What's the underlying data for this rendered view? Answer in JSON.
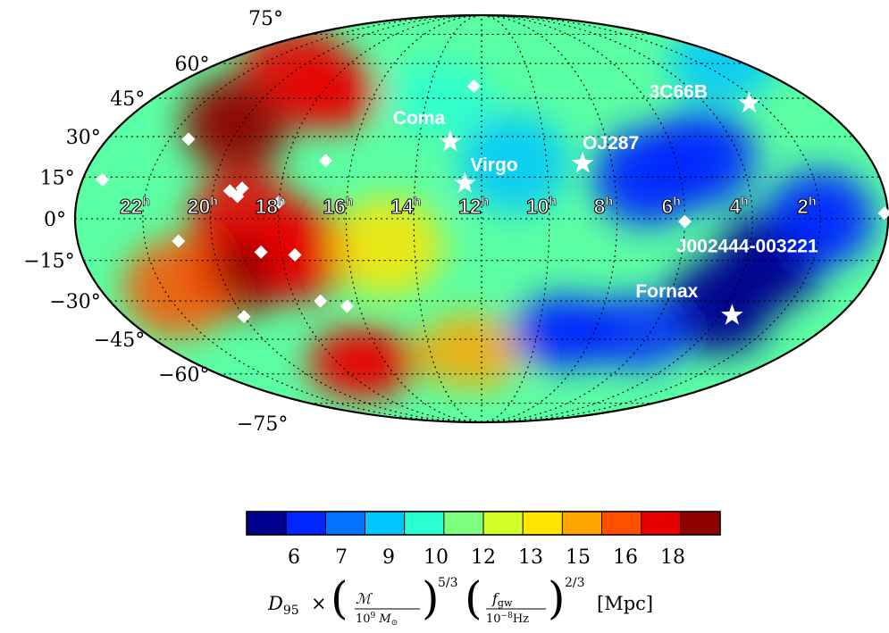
{
  "chart_data": {
    "type": "heatmap",
    "projection": "mollweide",
    "ra_tick_labels": [
      {
        "hours": 22,
        "text": "22",
        "sup": "h"
      },
      {
        "hours": 20,
        "text": "20",
        "sup": "h"
      },
      {
        "hours": 18,
        "text": "18",
        "sup": "h"
      },
      {
        "hours": 16,
        "text": "16",
        "sup": "h"
      },
      {
        "hours": 14,
        "text": "14",
        "sup": "h"
      },
      {
        "hours": 12,
        "text": "12",
        "sup": "h"
      },
      {
        "hours": 10,
        "text": "10",
        "sup": "h"
      },
      {
        "hours": 8,
        "text": "8",
        "sup": "h"
      },
      {
        "hours": 6,
        "text": "6",
        "sup": "h"
      },
      {
        "hours": 4,
        "text": "4",
        "sup": "h"
      },
      {
        "hours": 2,
        "text": "2",
        "sup": "h"
      }
    ],
    "dec_tick_labels": [
      {
        "dec": 75,
        "text": "75°"
      },
      {
        "dec": 60,
        "text": "60°"
      },
      {
        "dec": 45,
        "text": "45°"
      },
      {
        "dec": 30,
        "text": "30°"
      },
      {
        "dec": 15,
        "text": "15°"
      },
      {
        "dec": 0,
        "text": "0°"
      },
      {
        "dec": -15,
        "text": "−15°"
      },
      {
        "dec": -30,
        "text": "−30°"
      },
      {
        "dec": -45,
        "text": "−45°"
      },
      {
        "dec": -60,
        "text": "−60°"
      },
      {
        "dec": -75,
        "text": "−75°"
      }
    ],
    "grid": true,
    "named_sources": [
      {
        "name": "3C66B",
        "ra_h": 2.4,
        "dec": 43
      },
      {
        "name": "Coma",
        "ra_h": 13.0,
        "dec": 28
      },
      {
        "name": "Virgo",
        "ra_h": 12.5,
        "dec": 12.7
      },
      {
        "name": "OJ287",
        "ra_h": 8.9,
        "dec": 20
      },
      {
        "name": "Fornax",
        "ra_h": 3.6,
        "dec": -35.5
      },
      {
        "name": "J002444-003221",
        "ra_h": 0.4,
        "dec": -0.5
      }
    ],
    "pulsars": [
      {
        "ra_h": 12.3,
        "dec": 50
      },
      {
        "ra_h": 21.4,
        "dec": 29
      },
      {
        "ra_h": 23.4,
        "dec": 14
      },
      {
        "ra_h": 16.8,
        "dec": 21
      },
      {
        "ra_h": 19.5,
        "dec": 10
      },
      {
        "ra_h": 19.25,
        "dec": 8
      },
      {
        "ra_h": 19.15,
        "dec": 11
      },
      {
        "ra_h": 18.0,
        "dec": 6
      },
      {
        "ra_h": 21.0,
        "dec": -8
      },
      {
        "ra_h": 18.6,
        "dec": -12
      },
      {
        "ra_h": 17.6,
        "dec": -13
      },
      {
        "ra_h": 17.2,
        "dec": -30
      },
      {
        "ra_h": 16.4,
        "dec": -32
      },
      {
        "ra_h": 20.0,
        "dec": -36
      },
      {
        "ra_h": 6.0,
        "dec": -1
      },
      {
        "ra_h": 0.1,
        "dec": 2
      }
    ],
    "colorbar": {
      "colors": [
        "#00008f",
        "#0025ff",
        "#0074ff",
        "#00c6ff",
        "#2affd1",
        "#7fff7f",
        "#d1ff2a",
        "#ffe500",
        "#ffa400",
        "#ff5000",
        "#e80000",
        "#8f0000"
      ],
      "tick_labels": [
        "6",
        "7",
        "9",
        "10",
        "12",
        "13",
        "15",
        "16",
        "18"
      ],
      "label": "D95 × (ℳ / 10⁹ M⊙)^(5/3) (f_gw / 10⁻⁸Hz)^(2/3) [Mpc]"
    },
    "heat_blobs": [
      {
        "ra_h": 20.2,
        "dec": 35,
        "level": 0.97
      },
      {
        "ra_h": 20.5,
        "dec": 60,
        "level": 0.9
      },
      {
        "ra_h": 17.8,
        "dec": 47,
        "level": 0.92
      },
      {
        "ra_h": 19.3,
        "dec": -17,
        "level": 0.97
      },
      {
        "ra_h": 19.0,
        "dec": 0,
        "level": 0.9
      },
      {
        "ra_h": 17.5,
        "dec": -12,
        "level": 0.93
      },
      {
        "ra_h": 17.0,
        "dec": -55,
        "level": 0.92
      },
      {
        "ra_h": 21.5,
        "dec": -25,
        "level": 0.85
      },
      {
        "ra_h": 14.8,
        "dec": -10,
        "level": 0.65
      },
      {
        "ra_h": 12.4,
        "dec": -50,
        "level": 0.72
      },
      {
        "ra_h": 7.0,
        "dec": 15,
        "level": 0.05
      },
      {
        "ra_h": 5.2,
        "dec": 22,
        "level": 0.06
      },
      {
        "ra_h": 3.3,
        "dec": -15,
        "level": 0.02
      },
      {
        "ra_h": 4.2,
        "dec": -32,
        "level": 0.0
      },
      {
        "ra_h": 2.0,
        "dec": 0,
        "level": 0.08
      },
      {
        "ra_h": 9.0,
        "dec": -42,
        "level": 0.08
      },
      {
        "ra_h": 6.5,
        "dec": -42,
        "level": 0.12
      },
      {
        "ra_h": 11.0,
        "dec": 20,
        "level": 0.28
      },
      {
        "ra_h": 13.5,
        "dec": 45,
        "level": 0.32
      },
      {
        "ra_h": 1.0,
        "dec": 60,
        "level": 0.3
      }
    ]
  }
}
